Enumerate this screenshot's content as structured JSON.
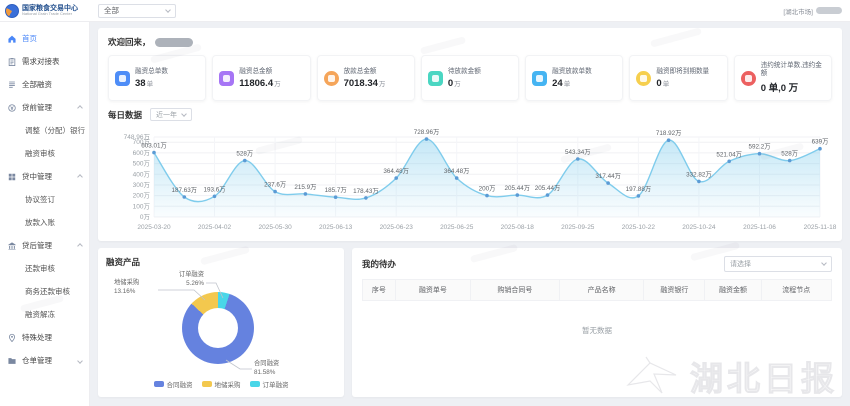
{
  "colors": {
    "accent": "#4a87f8",
    "panel_bg": "#ffffff",
    "page_bg": "#eef0f4"
  },
  "header": {
    "logo_title": "国家粮食交易中心",
    "logo_subtitle": "National Grain Trade Center",
    "market_select": "全部",
    "market_tag": "[湖北市场]"
  },
  "sidebar": {
    "items": [
      {
        "key": "home",
        "label": "首页",
        "icon": "home-icon",
        "active": true
      },
      {
        "key": "demand-table",
        "label": "需求对接表",
        "icon": "clipboard-icon"
      },
      {
        "key": "all-financing",
        "label": "全部融资",
        "icon": "list-icon"
      },
      {
        "key": "pre-loan",
        "label": "贷前管理",
        "icon": "coin-icon",
        "group": true,
        "expanded": true
      },
      {
        "key": "adjust-bank",
        "label": "调整（分配）银行",
        "child": true
      },
      {
        "key": "financing-review",
        "label": "融资审核",
        "child": true
      },
      {
        "key": "mid-loan",
        "label": "贷中管理",
        "icon": "grid-icon",
        "group": true,
        "expanded": true
      },
      {
        "key": "agreement-sign",
        "label": "协议签订",
        "child": true
      },
      {
        "key": "disbursement-entry",
        "label": "放款入账",
        "child": true
      },
      {
        "key": "post-loan",
        "label": "贷后管理",
        "icon": "bank-icon",
        "group": true,
        "expanded": true
      },
      {
        "key": "repay-review",
        "label": "还款审核",
        "child": true
      },
      {
        "key": "biz-repay-review",
        "label": "商务还款审核",
        "child": true
      },
      {
        "key": "financing-unfreeze",
        "label": "融资解冻",
        "child": true
      },
      {
        "key": "special-handling",
        "label": "特殊处理",
        "icon": "pin-icon"
      },
      {
        "key": "warehouse-receipt",
        "label": "仓单管理",
        "icon": "folder-icon",
        "group": true,
        "expanded": false
      }
    ]
  },
  "main": {
    "welcome_prefix": "欢迎回来，",
    "stats": [
      {
        "key": "total-orders",
        "label": "融资总单数",
        "value": "38",
        "unit": "单",
        "color": "#4e8df7",
        "shape": "square",
        "icon": "document-icon"
      },
      {
        "key": "total-amount",
        "label": "融资总金额",
        "value": "11806.4",
        "unit": "万",
        "color": "#a675f5",
        "shape": "square",
        "icon": "money-bag-icon"
      },
      {
        "key": "disbursed-amount",
        "label": "放款总金额",
        "value": "7018.34",
        "unit": "万",
        "color": "#f5a55a",
        "shape": "circle",
        "icon": "coin-icon"
      },
      {
        "key": "pending-amount",
        "label": "待放款金额",
        "value": "0",
        "unit": "万",
        "color": "#4ad6c2",
        "shape": "square",
        "icon": "wallet-icon"
      },
      {
        "key": "disbursed-orders",
        "label": "融资放款单数",
        "value": "24",
        "unit": "单",
        "color": "#45b4f2",
        "shape": "square",
        "icon": "chart-icon"
      },
      {
        "key": "expiring-count",
        "label": "融资即将到期数量",
        "value": "0",
        "unit": "单",
        "color": "#f6cf4e",
        "shape": "circle",
        "icon": "drop-icon"
      },
      {
        "key": "default-stats",
        "label": "违约统计单数,违约金额",
        "value": "0 单,0 万",
        "unit": "",
        "color": "#ec6060",
        "shape": "circle",
        "icon": "clock-icon"
      }
    ],
    "todo": {
      "title": "我的待办",
      "filter_placeholder": "请选择",
      "columns": [
        "序号",
        "融资单号",
        "购销合同号",
        "产品名称",
        "融资银行",
        "融资金额",
        "流程节点"
      ],
      "empty_text": "暂无数据"
    }
  },
  "chart_data": [
    {
      "type": "area",
      "title": "每日数据",
      "range_selector": "近一年",
      "x_tick_labels": [
        "2025-03-20",
        "2025-04-02",
        "2025-05-30",
        "2025-06-13",
        "2025-06-23",
        "2025-06-25",
        "2025-08-18",
        "2025-09-25",
        "2025-10-22",
        "2025-10-24",
        "2025-11-06",
        "2025-11-18"
      ],
      "values": [
        603.01,
        187.63,
        193.6,
        528,
        237.6,
        215.9,
        185.7,
        178.43,
        364.48,
        728.96,
        364.48,
        200,
        205.44,
        205.44,
        543.34,
        317.44,
        197.88,
        718.92,
        332.82,
        521.04,
        592.2,
        528,
        639
      ],
      "point_labels": [
        "603.01万",
        "187.63万",
        "193.6万",
        "528万",
        "237.6万",
        "215.9万",
        "185.7万",
        "178.43万",
        "364.48万",
        "728.96万",
        "364.48万",
        "200万",
        "205.44万",
        "205.44万",
        "543.34万",
        "317.44万",
        "197.88万",
        "718.92万",
        "332.82万",
        "521.04万",
        "592.2万",
        "528万",
        "639万"
      ],
      "y_tick_labels": [
        "748.96万",
        "700万",
        "600万",
        "500万",
        "400万",
        "300万",
        "200万",
        "100万",
        "0万"
      ],
      "y_tick_values": [
        748.96,
        700,
        600,
        500,
        400,
        300,
        200,
        100,
        0
      ],
      "ymax": 748.96,
      "unit": "万",
      "ylim": [
        0,
        748.96
      ],
      "grid": true,
      "line_color": "#7fccec",
      "dot_color": "#5b9bd5"
    },
    {
      "type": "pie",
      "title": "融资产品",
      "slices": [
        {
          "name": "合同融资",
          "pct": 81.58,
          "pct_label": "81.58%",
          "color": "#6582df"
        },
        {
          "name": "地储采购",
          "pct": 13.16,
          "pct_label": "13.16%",
          "color": "#f3c84e"
        },
        {
          "name": "订单融资",
          "pct": 5.26,
          "pct_label": "5.26%",
          "color": "#49d6e8"
        }
      ],
      "legend_position": "bottom"
    }
  ],
  "watermark": {
    "press_name": "湖北日报"
  }
}
